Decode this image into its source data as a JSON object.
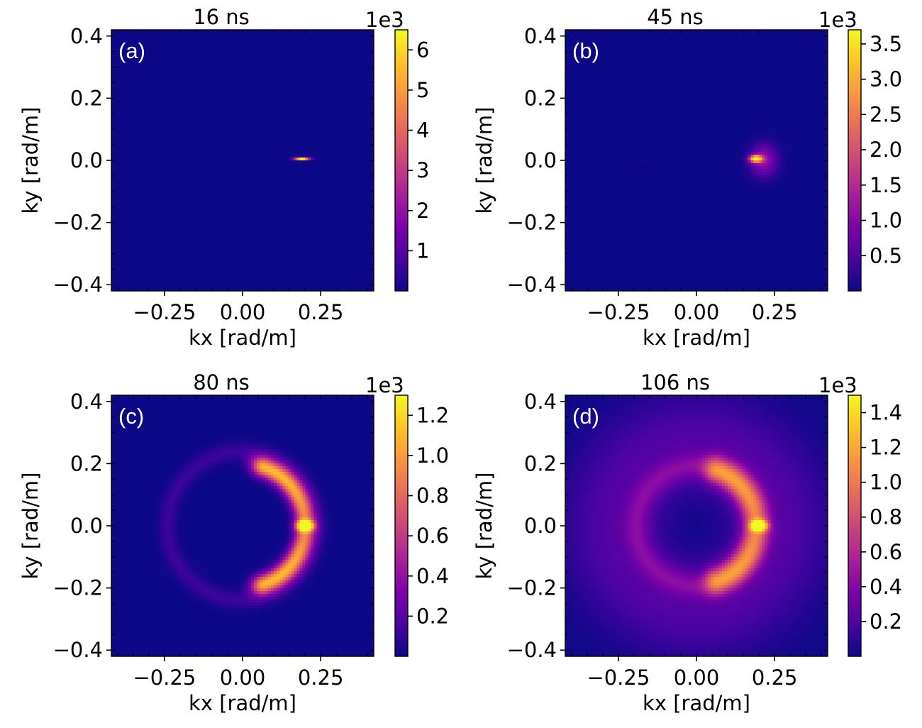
{
  "chart_data": [
    {
      "type": "heatmap",
      "panel_label": "(a)",
      "title": "16 ns",
      "xlabel": "kx [rad/m]",
      "ylabel": "ky [rad/m]",
      "xlim": [
        -0.42,
        0.42
      ],
      "ylim": [
        -0.42,
        0.42
      ],
      "xticks": [
        -0.25,
        0.0,
        0.25
      ],
      "xtick_labels": [
        "−0.25",
        "0.00",
        "0.25"
      ],
      "yticks": [
        0.4,
        0.2,
        0.0,
        -0.2,
        -0.4
      ],
      "ytick_labels": [
        "0.4",
        "0.2",
        "0.0",
        "−0.2",
        "−0.4"
      ],
      "colormap": "plasma",
      "colorbar": {
        "offset_label": "1e3",
        "min": 0.0,
        "max": 6.5,
        "ticks": [
          6,
          5,
          4,
          3,
          2,
          1
        ],
        "tick_labels": [
          "6",
          "5",
          "4",
          "3",
          "2",
          "1"
        ]
      },
      "features": [
        {
          "shape": "spot",
          "kx": 0.19,
          "ky": 0.005,
          "intensity": 6.5,
          "sigma_kx": 0.017,
          "sigma_ky": 0.0035
        },
        {
          "shape": "spot",
          "kx": -0.18,
          "ky": 0.0,
          "intensity": 0.07,
          "sigma_kx": 0.01,
          "sigma_ky": 0.006
        }
      ]
    },
    {
      "type": "heatmap",
      "panel_label": "(b)",
      "title": "45 ns",
      "xlabel": "kx [rad/m]",
      "ylabel": "ky [rad/m]",
      "xlim": [
        -0.42,
        0.42
      ],
      "ylim": [
        -0.42,
        0.42
      ],
      "xticks": [
        -0.25,
        0.0,
        0.25
      ],
      "xtick_labels": [
        "−0.25",
        "0.00",
        "0.25"
      ],
      "yticks": [
        0.4,
        0.2,
        0.0,
        -0.2,
        -0.4
      ],
      "ytick_labels": [
        "0.4",
        "0.2",
        "0.0",
        "−0.2",
        "−0.4"
      ],
      "colormap": "plasma",
      "colorbar": {
        "offset_label": "1e3",
        "min": 0.0,
        "max": 3.7,
        "ticks": [
          3.5,
          3.0,
          2.5,
          2.0,
          1.5,
          1.0,
          0.5
        ],
        "tick_labels": [
          "3.5",
          "3.0",
          "2.5",
          "2.0",
          "1.5",
          "1.0",
          "0.5"
        ]
      },
      "features": [
        {
          "shape": "spot",
          "kx": 0.19,
          "ky": 0.005,
          "intensity": 3.7,
          "sigma_kx": 0.014,
          "sigma_ky": 0.008
        },
        {
          "shape": "spot",
          "kx": 0.215,
          "ky": 0.0,
          "intensity": 1.2,
          "sigma_kx": 0.03,
          "sigma_ky": 0.035
        },
        {
          "shape": "spot",
          "kx": -0.17,
          "ky": 0.0,
          "intensity": 0.06,
          "sigma_kx": 0.012,
          "sigma_ky": 0.008
        }
      ]
    },
    {
      "type": "heatmap",
      "panel_label": "(c)",
      "title": "80 ns",
      "xlabel": "kx [rad/m]",
      "ylabel": "ky [rad/m]",
      "xlim": [
        -0.42,
        0.42
      ],
      "ylim": [
        -0.42,
        0.42
      ],
      "xticks": [
        -0.25,
        0.0,
        0.25
      ],
      "xtick_labels": [
        "−0.25",
        "0.00",
        "0.25"
      ],
      "yticks": [
        0.4,
        0.2,
        0.0,
        -0.2,
        -0.4
      ],
      "ytick_labels": [
        "0.4",
        "0.2",
        "0.0",
        "−0.2",
        "−0.4"
      ],
      "colormap": "plasma",
      "colorbar": {
        "offset_label": "1e3",
        "min": 0.0,
        "max": 1.3,
        "ticks": [
          1.2,
          1.0,
          0.8,
          0.6,
          0.4,
          0.2
        ],
        "tick_labels": [
          "1.2",
          "1.0",
          "0.8",
          "0.6",
          "0.4",
          "0.2"
        ]
      },
      "features": [
        {
          "shape": "arc",
          "center_kx": 0.0,
          "center_ky": 0.0,
          "radius": 0.2,
          "half_angle_deg": 70,
          "width": 0.022,
          "intensity": 1.1
        },
        {
          "shape": "ring",
          "center_kx": 0.0,
          "center_ky": 0.0,
          "radius": 0.24,
          "width": 0.02,
          "intensity": 0.12
        },
        {
          "shape": "spot",
          "kx": 0.2,
          "ky": 0.0,
          "intensity": 1.25,
          "sigma_kx": 0.02,
          "sigma_ky": 0.012
        }
      ]
    },
    {
      "type": "heatmap",
      "panel_label": "(d)",
      "title": "106 ns",
      "xlabel": "kx [rad/m]",
      "ylabel": "ky [rad/m]",
      "xlim": [
        -0.42,
        0.42
      ],
      "ylim": [
        -0.42,
        0.42
      ],
      "xticks": [
        -0.25,
        0.0,
        0.25
      ],
      "xtick_labels": [
        "−0.25",
        "0.00",
        "0.25"
      ],
      "yticks": [
        0.4,
        0.2,
        0.0,
        -0.2,
        -0.4
      ],
      "ytick_labels": [
        "0.4",
        "0.2",
        "0.0",
        "−0.2",
        "−0.4"
      ],
      "colormap": "plasma",
      "colorbar": {
        "offset_label": "1e3",
        "min": 0.0,
        "max": 1.5,
        "ticks": [
          1.4,
          1.2,
          1.0,
          0.8,
          0.6,
          0.4,
          0.2
        ],
        "tick_labels": [
          "1.4",
          "1.2",
          "1.0",
          "0.8",
          "0.6",
          "0.4",
          "0.2"
        ]
      },
      "features": [
        {
          "shape": "arc",
          "center_kx": 0.0,
          "center_ky": 0.0,
          "radius": 0.19,
          "half_angle_deg": 70,
          "width": 0.03,
          "intensity": 0.75
        },
        {
          "shape": "ring",
          "center_kx": 0.0,
          "center_ky": 0.0,
          "radius": 0.19,
          "width": 0.03,
          "intensity": 0.25
        },
        {
          "shape": "spot",
          "kx": 0.2,
          "ky": 0.0,
          "intensity": 1.45,
          "sigma_kx": 0.018,
          "sigma_ky": 0.012
        },
        {
          "shape": "halo",
          "center_kx": 0.0,
          "center_ky": 0.0,
          "radius": 0.26,
          "width": 0.12,
          "intensity": 0.22
        }
      ]
    }
  ]
}
